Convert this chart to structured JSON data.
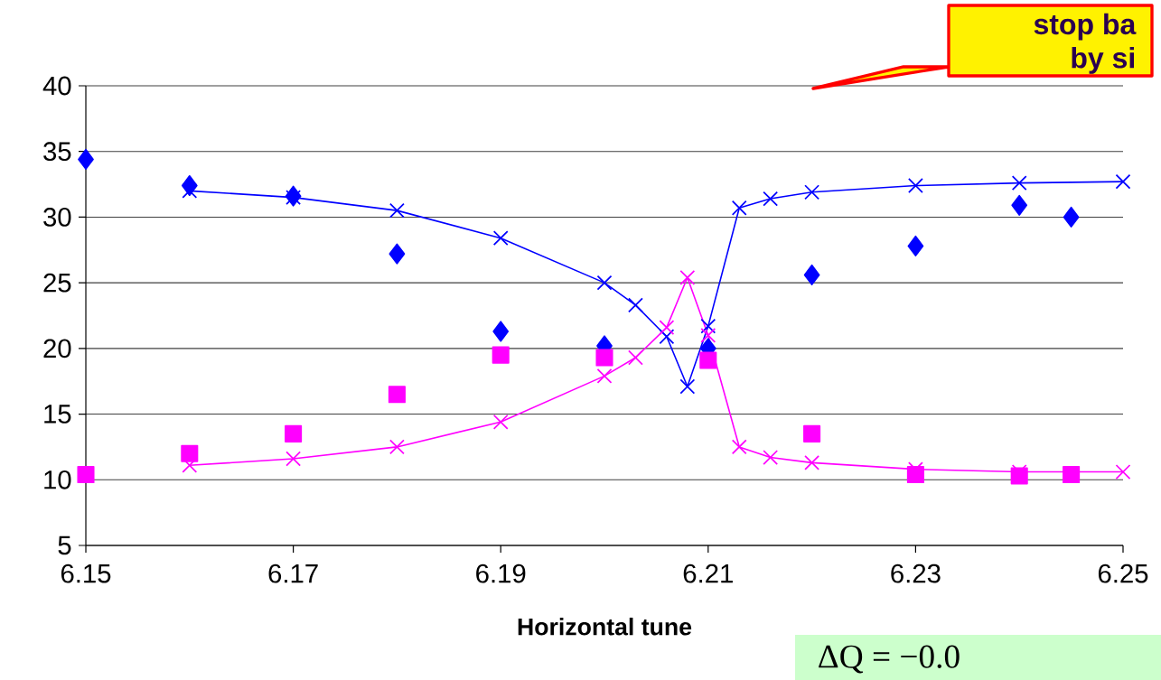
{
  "chart_data": {
    "type": "line",
    "xlabel": "Horizontal tune",
    "annotations": [
      "stop ba",
      "by si",
      "ΔQ = −0.0"
    ],
    "xlim": [
      6.15,
      6.25
    ],
    "ylim": [
      5,
      40
    ],
    "xticks": [
      6.15,
      6.17,
      6.19,
      6.21,
      6.23,
      6.25
    ],
    "yticks": [
      5,
      10,
      15,
      20,
      25,
      30,
      35,
      40
    ],
    "grid": "y",
    "series": [
      {
        "type": "scatter",
        "color": "#0000ff",
        "marker": "diamond",
        "x": [
          6.15,
          6.16,
          6.17,
          6.18,
          6.19,
          6.2,
          6.21,
          6.22,
          6.23,
          6.24,
          6.245
        ],
        "values": [
          34.4,
          32.4,
          31.6,
          27.2,
          21.3,
          20.2,
          20.0,
          25.6,
          27.8,
          30.9,
          30.0
        ]
      },
      {
        "type": "scatter",
        "color": "#ff00ff",
        "marker": "square",
        "x": [
          6.15,
          6.16,
          6.17,
          6.18,
          6.19,
          6.2,
          6.21,
          6.22,
          6.23,
          6.24,
          6.245
        ],
        "values": [
          10.4,
          12.0,
          13.5,
          16.5,
          19.5,
          19.3,
          19.1,
          13.5,
          10.4,
          10.3,
          10.4
        ]
      },
      {
        "type": "line",
        "color": "#0000ff",
        "marker": "cross",
        "x": [
          6.16,
          6.17,
          6.18,
          6.19,
          6.2,
          6.203,
          6.206,
          6.208,
          6.21,
          6.213,
          6.216,
          6.22,
          6.23,
          6.24,
          6.25
        ],
        "values": [
          32.0,
          31.5,
          30.5,
          28.4,
          25.0,
          23.3,
          20.9,
          17.1,
          21.7,
          30.7,
          31.4,
          31.9,
          32.4,
          32.6,
          32.7
        ]
      },
      {
        "type": "line",
        "color": "#ff00ff",
        "marker": "cross",
        "x": [
          6.16,
          6.17,
          6.18,
          6.19,
          6.2,
          6.203,
          6.206,
          6.208,
          6.21,
          6.213,
          6.216,
          6.22,
          6.23,
          6.24,
          6.25
        ],
        "values": [
          11.1,
          11.6,
          12.5,
          14.4,
          17.9,
          19.3,
          21.6,
          25.4,
          21.0,
          12.5,
          11.7,
          11.3,
          10.8,
          10.6,
          10.6
        ]
      }
    ]
  }
}
